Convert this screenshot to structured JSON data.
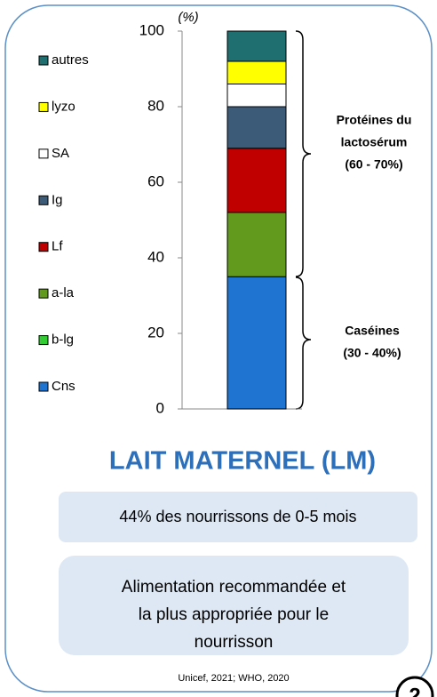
{
  "chart_data": {
    "type": "stacked_bar",
    "y_label": "(%)",
    "categories": [
      null
    ],
    "series": [
      {
        "name": "Cns",
        "color": "#1f74d1",
        "values": [
          35
        ]
      },
      {
        "name": "b-lg",
        "color": "#33cc33",
        "values": [
          0
        ]
      },
      {
        "name": "a-la",
        "color": "#619a1c",
        "values": [
          17
        ]
      },
      {
        "name": "Lf",
        "color": "#c00000",
        "values": [
          17
        ]
      },
      {
        "name": "Ig",
        "color": "#3b5b79",
        "values": [
          11
        ]
      },
      {
        "name": "SA",
        "color": "#ffffff",
        "values": [
          6
        ]
      },
      {
        "name": "lyzo",
        "color": "#ffff00",
        "values": [
          6
        ]
      },
      {
        "name": "autres",
        "color": "#1f6e70",
        "values": [
          8
        ]
      }
    ],
    "ylim": [
      0,
      100
    ],
    "yticks": [
      0,
      20,
      40,
      60,
      80,
      100
    ],
    "grid": false,
    "legend": "left",
    "annotations": [
      {
        "lines": [
          "Protéines du",
          "lactosérum",
          "(60 - 70%)"
        ]
      },
      {
        "lines": [
          "Caséines",
          "(30 - 40%)"
        ]
      }
    ]
  },
  "title": "LAIT MATERNEL (LM)",
  "fact": "44% des nourrissons de 0-5 mois",
  "recommendation": [
    "Alimentation recommandée et",
    "la plus appropriée pour le",
    "nourrisson"
  ],
  "source": "Unicef, 2021; WHO, 2020",
  "page_number": "2"
}
